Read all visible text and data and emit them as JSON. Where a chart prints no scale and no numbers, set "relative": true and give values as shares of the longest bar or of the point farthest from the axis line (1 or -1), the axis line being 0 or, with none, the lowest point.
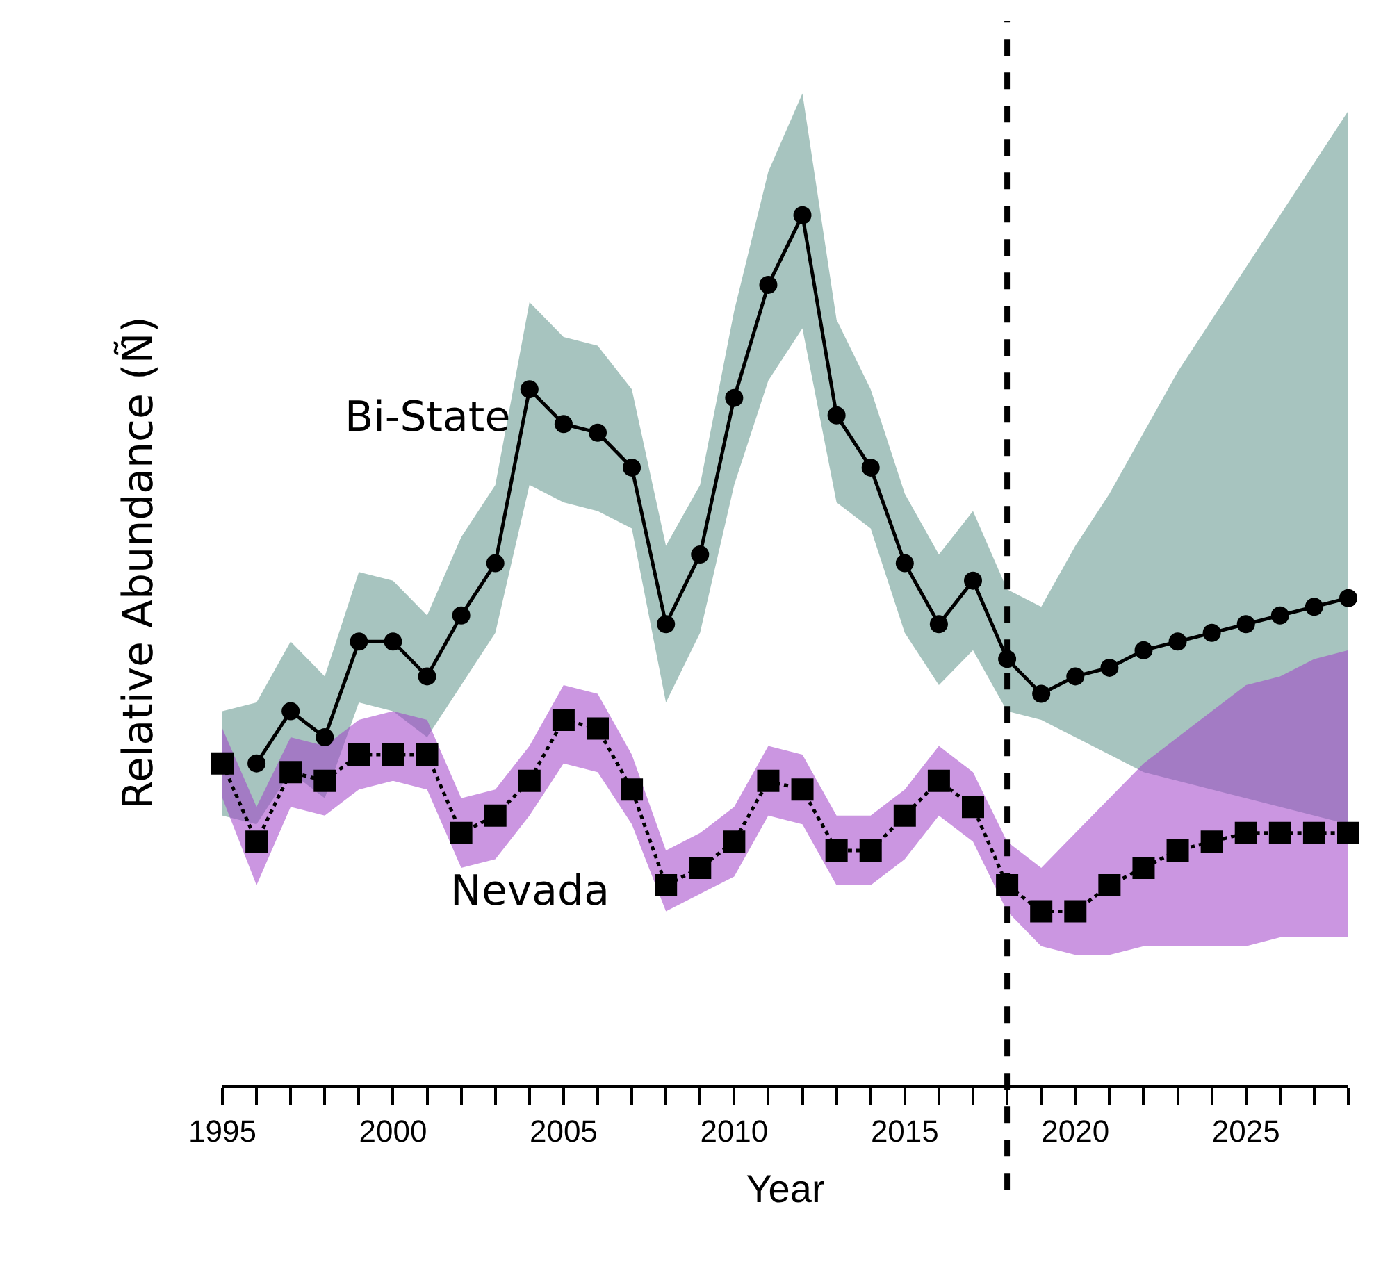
{
  "chart_data": {
    "type": "line",
    "relative": true,
    "xlabel": "Year",
    "ylabel": "Relative Abundance (Ñ̂)",
    "x": [
      1995,
      1996,
      1997,
      1998,
      1999,
      2000,
      2001,
      2002,
      2003,
      2004,
      2005,
      2006,
      2007,
      2008,
      2009,
      2010,
      2011,
      2012,
      2013,
      2014,
      2015,
      2016,
      2017,
      2018,
      2019,
      2020,
      2021,
      2022,
      2023,
      2024,
      2025,
      2026,
      2027,
      2028
    ],
    "xlim": [
      1995,
      2028
    ],
    "xticks": [
      1995,
      {
        "value": 1996,
        "label": null
      },
      {
        "value": 1997,
        "label": null
      },
      {
        "value": 1998,
        "label": null
      },
      {
        "value": 1999,
        "label": null
      },
      2000,
      {
        "value": 2001,
        "label": null
      },
      {
        "value": 2002,
        "label": null
      },
      {
        "value": 2003,
        "label": null
      },
      {
        "value": 2004,
        "label": null
      },
      2005,
      {
        "value": 2006,
        "label": null
      },
      {
        "value": 2007,
        "label": null
      },
      {
        "value": 2008,
        "label": null
      },
      {
        "value": 2009,
        "label": null
      },
      2010,
      {
        "value": 2011,
        "label": null
      },
      {
        "value": 2012,
        "label": null
      },
      {
        "value": 2013,
        "label": null
      },
      {
        "value": 2014,
        "label": null
      },
      2015,
      {
        "value": 2016,
        "label": null
      },
      {
        "value": 2017,
        "label": null
      },
      {
        "value": 2018,
        "label": null
      },
      {
        "value": 2019,
        "label": null
      },
      2020,
      {
        "value": 2021,
        "label": null
      },
      {
        "value": 2022,
        "label": null
      },
      {
        "value": 2023,
        "label": null
      },
      {
        "value": 2024,
        "label": null
      },
      2025,
      {
        "value": 2026,
        "label": null
      },
      {
        "value": 2027,
        "label": null
      },
      {
        "value": 2028,
        "label": null
      }
    ],
    "grid": false,
    "legend": false,
    "tick_labels": "x",
    "ref_lines": [
      {
        "axis": "x",
        "value": 2018,
        "color": "#000000",
        "line_style": "dashed"
      }
    ],
    "series": [
      {
        "name": "Bi-State",
        "color": "#000000",
        "marker": "circle",
        "line_style": "solid",
        "values": [
          null,
          0.37,
          0.43,
          0.4,
          0.51,
          0.51,
          0.47,
          0.54,
          0.6,
          0.8,
          0.76,
          0.75,
          0.71,
          0.53,
          0.61,
          0.79,
          0.92,
          1.0,
          0.77,
          0.71,
          0.6,
          0.53,
          0.58,
          0.49,
          0.45,
          0.47,
          0.48,
          0.5,
          0.51,
          0.52,
          0.53,
          0.54,
          0.55,
          0.56
        ],
        "lower": [
          0.31,
          0.3,
          0.36,
          0.33,
          0.44,
          0.43,
          0.4,
          0.46,
          0.52,
          0.69,
          0.67,
          0.66,
          0.64,
          0.44,
          0.52,
          0.69,
          0.81,
          0.87,
          0.67,
          0.64,
          0.52,
          0.46,
          0.5,
          0.43,
          0.42,
          0.4,
          0.38,
          0.36,
          0.35,
          0.34,
          0.33,
          0.32,
          0.31,
          0.3
        ],
        "upper": [
          0.43,
          0.44,
          0.51,
          0.47,
          0.59,
          0.58,
          0.54,
          0.63,
          0.69,
          0.9,
          0.86,
          0.85,
          0.8,
          0.62,
          0.69,
          0.89,
          1.05,
          1.14,
          0.88,
          0.8,
          0.68,
          0.61,
          0.66,
          0.57,
          0.55,
          0.62,
          0.68,
          0.75,
          0.82,
          0.88,
          0.94,
          1.0,
          1.06,
          1.12
        ]
      },
      {
        "name": "Nevada",
        "color": "#000000",
        "marker": "square",
        "line_style": "dotted",
        "values": [
          0.37,
          0.28,
          0.36,
          0.35,
          0.38,
          0.38,
          0.38,
          0.29,
          0.31,
          0.35,
          0.42,
          0.41,
          0.34,
          0.23,
          0.25,
          0.28,
          0.35,
          0.34,
          0.27,
          0.27,
          0.31,
          0.35,
          0.32,
          0.23,
          0.2,
          0.2,
          0.23,
          0.25,
          0.27,
          0.28,
          0.29,
          0.29,
          0.29,
          0.29
        ],
        "lower": [
          0.33,
          0.23,
          0.32,
          0.31,
          0.34,
          0.35,
          0.34,
          0.25,
          0.26,
          0.31,
          0.37,
          0.36,
          0.3,
          0.2,
          0.22,
          0.24,
          0.31,
          0.3,
          0.23,
          0.23,
          0.26,
          0.31,
          0.28,
          0.2,
          0.16,
          0.15,
          0.15,
          0.16,
          0.16,
          0.16,
          0.16,
          0.17,
          0.17,
          0.17
        ],
        "upper": [
          0.41,
          0.32,
          0.4,
          0.39,
          0.42,
          0.43,
          0.42,
          0.33,
          0.34,
          0.39,
          0.46,
          0.45,
          0.38,
          0.27,
          0.29,
          0.32,
          0.39,
          0.38,
          0.31,
          0.31,
          0.34,
          0.39,
          0.36,
          0.28,
          0.25,
          0.29,
          0.33,
          0.37,
          0.4,
          0.43,
          0.46,
          0.47,
          0.49,
          0.5
        ]
      }
    ]
  }
}
